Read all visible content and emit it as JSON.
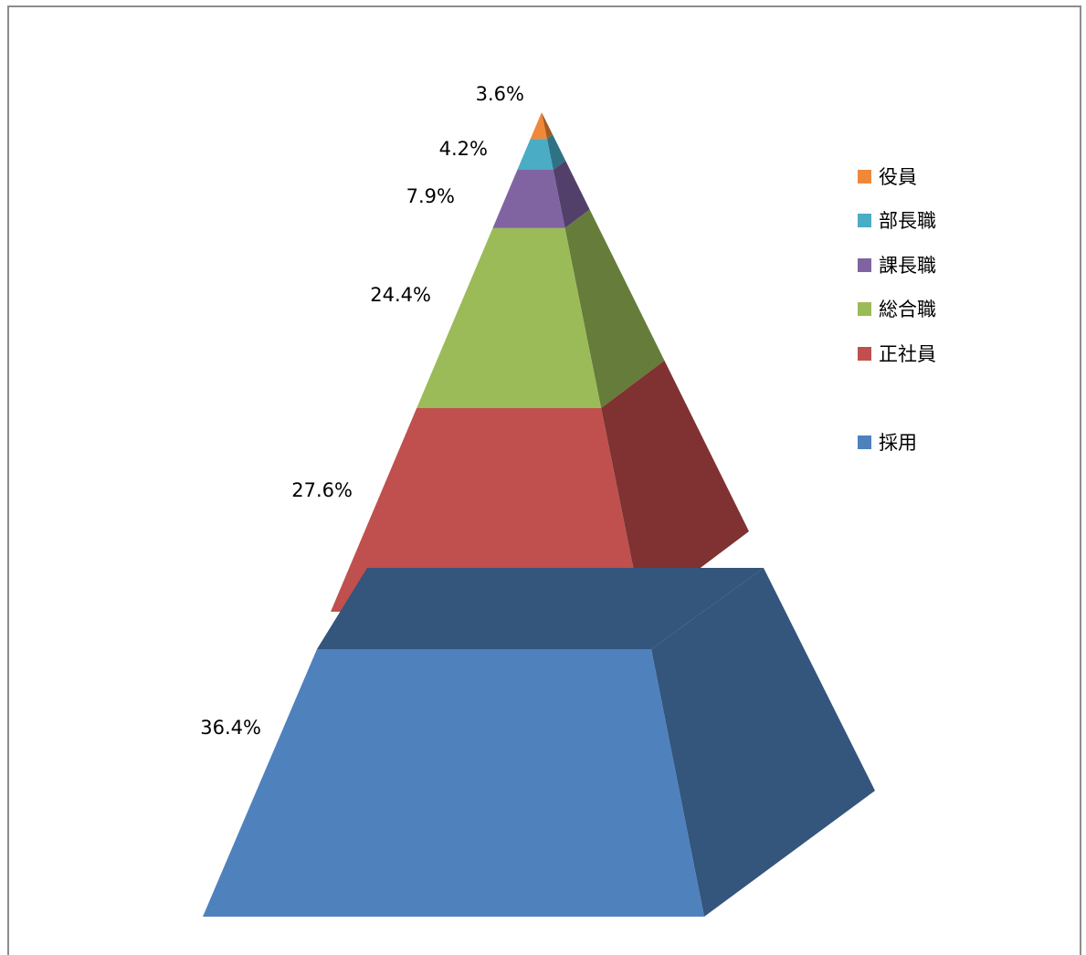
{
  "chart_data": {
    "type": "pyramid-3d",
    "title": "",
    "legend_position": "right",
    "pyramid": {
      "unit": "%",
      "segments": [
        {
          "name": "役員",
          "value": 3.6,
          "label": "3.6%",
          "front": "#f0883a",
          "side": "#a35a22"
        },
        {
          "name": "部長職",
          "value": 4.2,
          "label": "4.2%",
          "front": "#4aacc5",
          "side": "#2f7285"
        },
        {
          "name": "課長職",
          "value": 7.9,
          "label": "7.9%",
          "front": "#8064a2",
          "side": "#52406b"
        },
        {
          "name": "総合職",
          "value": 24.4,
          "label": "24.4%",
          "front": "#9bbb59",
          "side": "#667c3a"
        },
        {
          "name": "正社員",
          "value": 27.6,
          "label": "27.6%",
          "front": "#c0504d",
          "side": "#7f3231"
        }
      ]
    },
    "base": {
      "name": "採用",
      "value": 36.4,
      "label": "36.4%",
      "front": "#4f81bd",
      "side": "#34557c"
    },
    "legend": [
      "役員",
      "部長職",
      "課長職",
      "総合職",
      "正社員",
      "採用"
    ]
  }
}
